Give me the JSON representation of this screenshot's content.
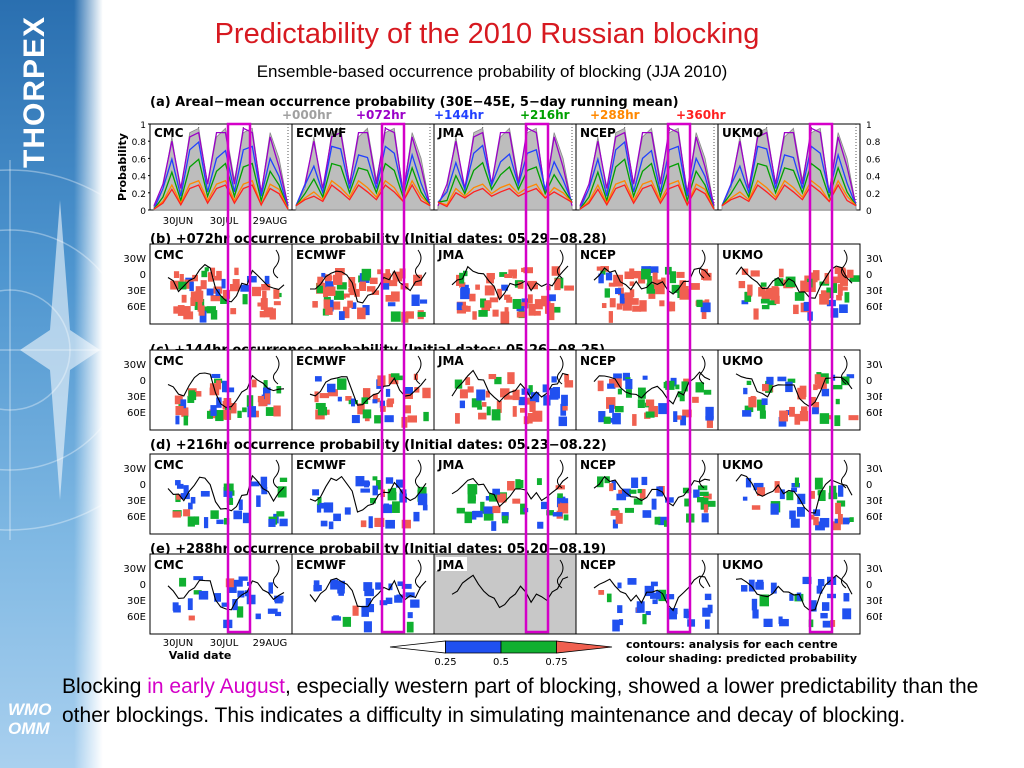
{
  "sidebar": {
    "brand": "THORPEX",
    "logo_lines": [
      "WMO",
      "OMM"
    ]
  },
  "header": {
    "title": "Predictability of the 2010 Russian blocking",
    "subtitle": "Ensemble-based occurrence probability of blocking (JJA 2010)"
  },
  "figure": {
    "panels": [
      {
        "key": "a",
        "title": "(a) Areal−mean  occurrence  probability  (30E−45E,  5−day  running  mean)"
      },
      {
        "key": "b",
        "title": "(b)  +072hr  occurrence  probability  (Initial  dates:  05.29−08.28)"
      },
      {
        "key": "c",
        "title": "(c)  +144hr  occurrence  probability  (Initial  dates:  05.26−08.25)"
      },
      {
        "key": "d",
        "title": "(d)  +216hr  occurrence  probability  (Initial  dates:  05.23−08.22)"
      },
      {
        "key": "e",
        "title": "(e)  +288hr  occurrence  probability  (Initial  dates:  05.20−08.19)"
      }
    ],
    "centres": [
      "CMC",
      "ECMWF",
      "JMA",
      "NCEP",
      "UKMO"
    ],
    "lat_ticks": [
      "30W",
      "0",
      "30E",
      "60E"
    ],
    "prob_ticks_left": [
      "1",
      "0.8",
      "0.6",
      "0.4",
      "0.2",
      "0"
    ],
    "prob_ticks_right": [
      "1",
      "0.8",
      "0.6",
      "0.4",
      "0.2",
      "0"
    ],
    "ylabel": "Probability",
    "date_ticks": [
      "30JUN",
      "30JUL",
      "29AUG"
    ],
    "xlabel": "Valid date",
    "colorbar_ticks": [
      "0.25",
      "0.5",
      "0.75"
    ],
    "notes": [
      "contours: analysis for each centre",
      "colour shading: predicted probability"
    ]
  },
  "colors": {
    "title": "#d71920",
    "highlight": "#d400c8",
    "lead_000": "#a0a0a0",
    "lead_072": "#9b00c8",
    "lead_144": "#2040ff",
    "lead_216": "#00a000",
    "lead_288": "#ff8800",
    "lead_360": "#ff2020",
    "shade_low": "#2050f0",
    "shade_mid": "#10b030",
    "shade_high": "#f06050"
  },
  "chart_data": {
    "type": "line",
    "title": "(a) Areal−mean  occurrence  probability  (30E−45E,  5−day  running  mean)",
    "xlabel": "",
    "ylabel": "Probability",
    "ylim": [
      0,
      1
    ],
    "x": [
      1,
      7,
      13,
      19,
      25,
      31,
      37,
      43,
      49,
      55,
      61,
      67,
      73,
      79,
      85,
      91
    ],
    "x_tick_labels": [
      "30JUN",
      "30JUL",
      "29AUG"
    ],
    "x_tick_positions": [
      31,
      61,
      91
    ],
    "facets": [
      "CMC",
      "ECMWF",
      "JMA",
      "NCEP",
      "UKMO"
    ],
    "series": [
      {
        "name": "+000hr",
        "values": [
          0.05,
          0.25,
          0.85,
          0.2,
          0.9,
          0.95,
          0.3,
          0.85,
          0.95,
          0.35,
          0.9,
          0.95,
          0.2,
          0.9,
          0.6,
          0.05
        ]
      },
      {
        "name": "+072hr",
        "values": [
          0.05,
          0.3,
          0.8,
          0.25,
          0.85,
          0.9,
          0.3,
          0.9,
          0.9,
          0.3,
          0.95,
          0.9,
          0.2,
          0.85,
          0.5,
          0.05
        ]
      },
      {
        "name": "+144hr",
        "values": [
          0.05,
          0.25,
          0.55,
          0.2,
          0.7,
          0.75,
          0.25,
          0.6,
          0.65,
          0.25,
          0.7,
          0.7,
          0.2,
          0.6,
          0.35,
          0.05
        ]
      },
      {
        "name": "+216hr",
        "values": [
          0.05,
          0.15,
          0.4,
          0.15,
          0.5,
          0.55,
          0.2,
          0.45,
          0.5,
          0.2,
          0.5,
          0.5,
          0.15,
          0.45,
          0.25,
          0.05
        ]
      },
      {
        "name": "+288hr",
        "values": [
          0.05,
          0.1,
          0.25,
          0.12,
          0.3,
          0.3,
          0.15,
          0.3,
          0.3,
          0.15,
          0.3,
          0.3,
          0.1,
          0.3,
          0.2,
          0.05
        ]
      },
      {
        "name": "+360hr",
        "values": [
          0.05,
          0.08,
          0.2,
          0.1,
          0.25,
          0.25,
          0.12,
          0.25,
          0.25,
          0.12,
          0.25,
          0.25,
          0.1,
          0.25,
          0.15,
          0.05
        ]
      }
    ],
    "colorbar": {
      "ticks": [
        0.25,
        0.5,
        0.75
      ],
      "colors": [
        "#ffffff",
        "#2050f0",
        "#10b030",
        "#f06050"
      ]
    },
    "grid": false,
    "legend": "top"
  },
  "caption": {
    "part1": "Blocking ",
    "highlight": "in early August",
    "part2": ", especially western part of blocking, showed a lower predictability than the other blockings. This indicates a difficulty in simulating maintenance and decay of blocking."
  }
}
